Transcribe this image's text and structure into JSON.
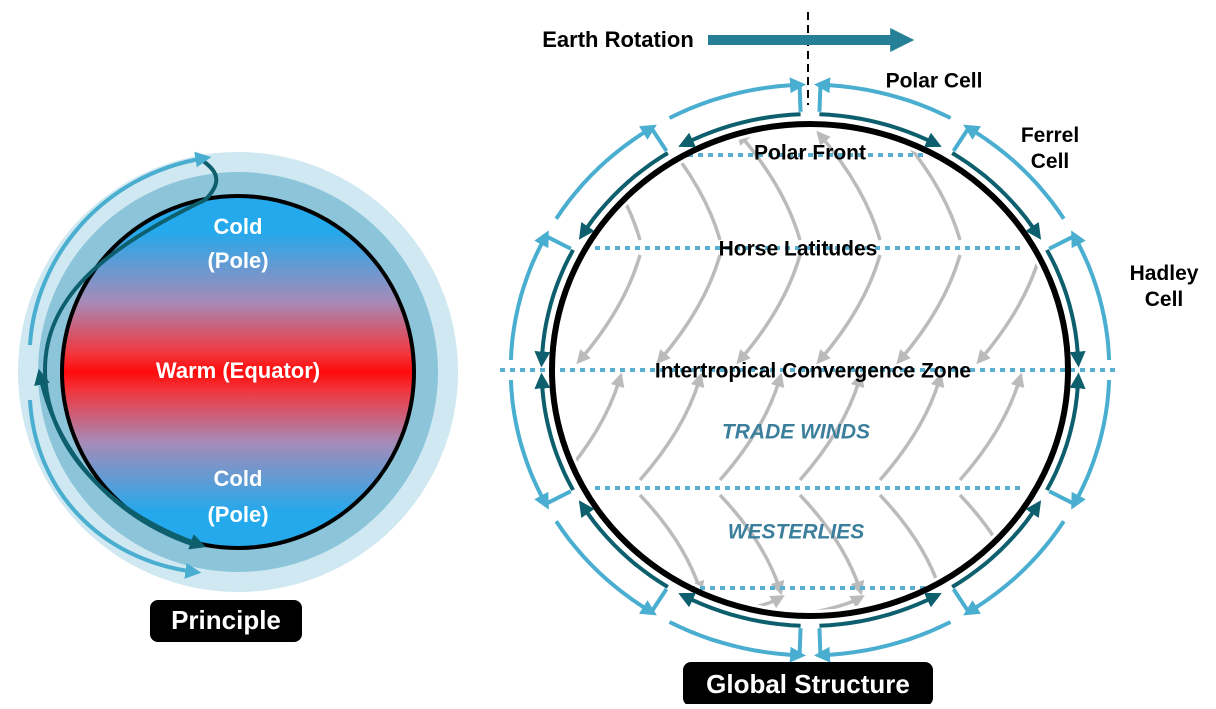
{
  "principle": {
    "cold_top": [
      "Cold",
      "(Pole)"
    ],
    "warm": "Warm (Equator)",
    "cold_bottom": [
      "Cold",
      "(Pole)"
    ],
    "caption": "Principle"
  },
  "global": {
    "rotation": "Earth Rotation",
    "polar_cell": "Polar Cell",
    "ferrel_cell": [
      "Ferrel",
      "Cell"
    ],
    "hadley_cell": [
      "Hadley",
      "Cell"
    ],
    "polar_front": "Polar Front",
    "horse_latitudes": "Horse Latitudes",
    "itcz": "Intertropical Convergence Zone",
    "trade_winds": "TRADE WINDS",
    "westerlies": "WESTERLIES",
    "caption": "Global Structure"
  }
}
